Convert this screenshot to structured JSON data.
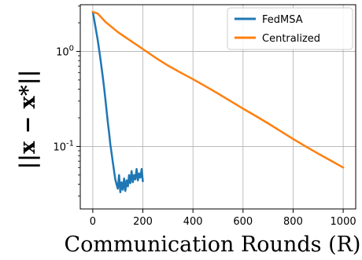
{
  "chart_data": {
    "type": "line",
    "title": "",
    "xlabel": "Communication Rounds (R)",
    "ylabel": "||x − x*||",
    "xscale": "linear",
    "yscale": "log",
    "xlim": [
      -50,
      1050
    ],
    "ylim": [
      0.022,
      3.1
    ],
    "xticks": [
      0,
      200,
      400,
      600,
      800,
      1000
    ],
    "xtick_labels": [
      "0",
      "200",
      "400",
      "600",
      "800",
      "1000"
    ],
    "yticks": [
      1,
      0.1
    ],
    "ytick_labels": [
      "10^0",
      "10^-1"
    ],
    "grid": true,
    "legend_position": "top-right",
    "series": [
      {
        "name": "FedMSA",
        "color": "#1f77b4",
        "x": [
          0,
          5,
          10,
          15,
          20,
          25,
          30,
          35,
          40,
          45,
          50,
          55,
          60,
          65,
          70,
          75,
          80,
          85,
          90,
          95,
          100,
          105,
          110,
          115,
          120,
          125,
          130,
          135,
          140,
          145,
          150,
          155,
          160,
          165,
          170,
          175,
          180,
          185,
          190,
          195,
          200
        ],
        "y": [
          2.6,
          2.2,
          1.85,
          1.55,
          1.3,
          1.05,
          0.85,
          0.68,
          0.54,
          0.42,
          0.32,
          0.24,
          0.18,
          0.14,
          0.105,
          0.085,
          0.068,
          0.055,
          0.045,
          0.04,
          0.036,
          0.05,
          0.033,
          0.042,
          0.035,
          0.046,
          0.034,
          0.044,
          0.038,
          0.05,
          0.041,
          0.055,
          0.042,
          0.05,
          0.045,
          0.058,
          0.044,
          0.052,
          0.047,
          0.058,
          0.043
        ]
      },
      {
        "name": "Centralized",
        "color": "#ff7f0e",
        "x": [
          0,
          20,
          50,
          100,
          150,
          200,
          250,
          300,
          350,
          400,
          450,
          500,
          550,
          600,
          650,
          700,
          750,
          800,
          850,
          900,
          950,
          1000
        ],
        "y": [
          2.6,
          2.5,
          2.05,
          1.6,
          1.3,
          1.06,
          0.86,
          0.71,
          0.6,
          0.51,
          0.43,
          0.36,
          0.3,
          0.25,
          0.21,
          0.175,
          0.145,
          0.12,
          0.1,
          0.084,
          0.071,
          0.06
        ]
      }
    ]
  }
}
